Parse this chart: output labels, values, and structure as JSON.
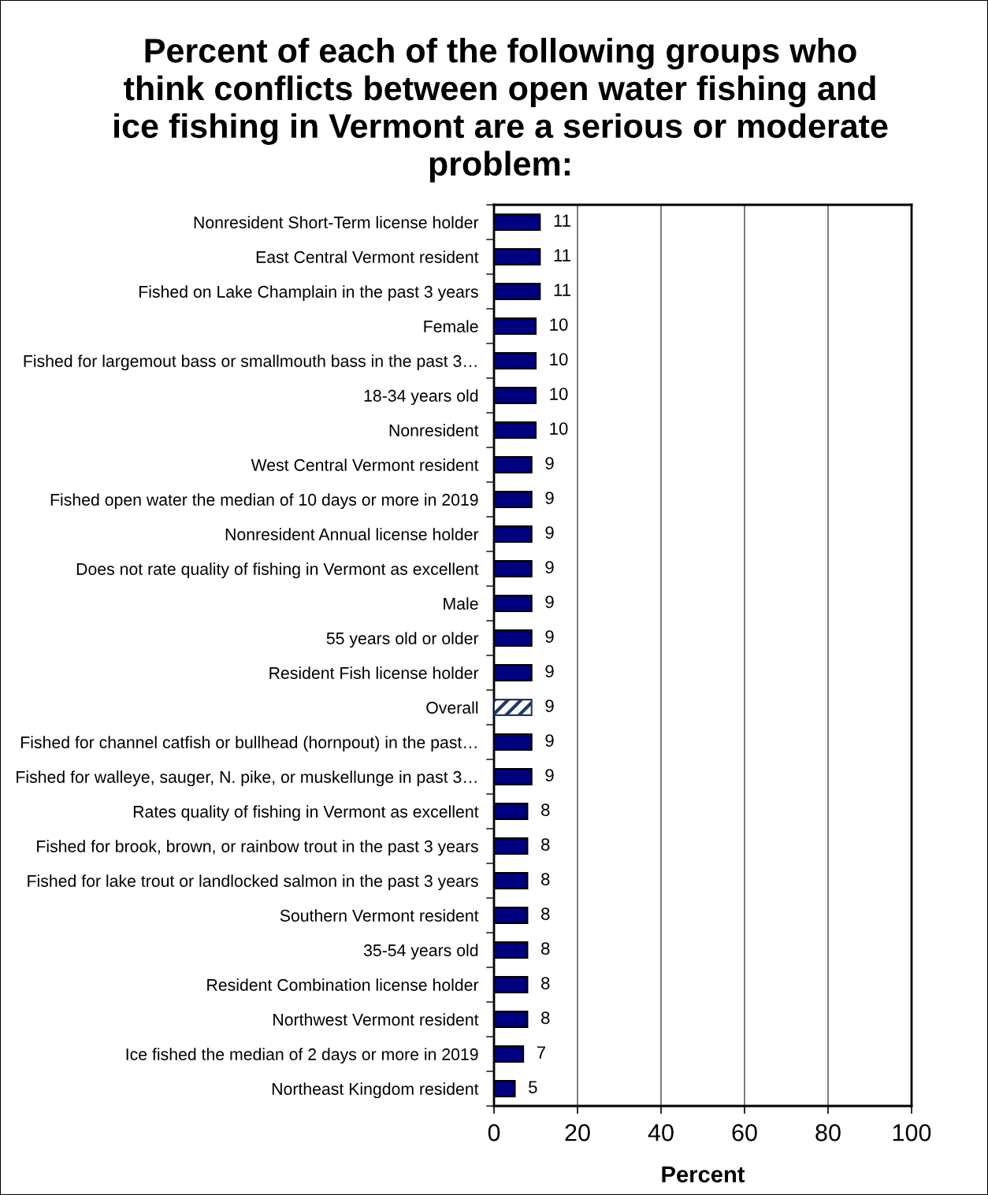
{
  "chart_data": {
    "type": "bar",
    "orientation": "horizontal",
    "title": "Percent of each of the following groups who think conflicts between open water fishing and ice fishing in Vermont are a serious or moderate problem:",
    "xlabel": "Percent",
    "categories": [
      "Nonresident Short-Term license holder",
      "East Central Vermont resident",
      "Fished on Lake Champlain in the past 3 years",
      "Female",
      "Fished for largemout bass or smallmouth bass in the past 3…",
      "18-34 years old",
      "Nonresident",
      "West Central Vermont resident",
      "Fished open water the median of 10 days or more in 2019",
      "Nonresident Annual license holder",
      "Does not rate quality of fishing in Vermont as excellent",
      "Male",
      "55 years old or older",
      "Resident Fish license holder",
      "Overall",
      "Fished for channel catfish or bullhead (hornpout) in the past…",
      "Fished for walleye, sauger, N. pike, or muskellunge in past 3…",
      "Rates quality of fishing in Vermont as excellent",
      "Fished for brook, brown, or rainbow trout in the past 3 years",
      "Fished for lake trout or landlocked salmon in the past 3 years",
      "Southern Vermont resident",
      "35-54 years old",
      "Resident Combination license holder",
      "Northwest Vermont resident",
      "Ice fished the median of 2 days or more in 2019",
      "Northeast Kingdom resident"
    ],
    "values": [
      11,
      11,
      11,
      10,
      10,
      10,
      10,
      9,
      9,
      9,
      9,
      9,
      9,
      9,
      9,
      9,
      9,
      8,
      8,
      8,
      8,
      8,
      8,
      8,
      7,
      5
    ],
    "colors": [
      "#000080",
      "#000080",
      "#000080",
      "#000080",
      "#000080",
      "#000080",
      "#000080",
      "#000080",
      "#000080",
      "#000080",
      "#000080",
      "#000080",
      "#000080",
      "#000080",
      "#203864",
      "#000080",
      "#000080",
      "#000080",
      "#000080",
      "#000080",
      "#000080",
      "#000080",
      "#000080",
      "#000080",
      "#000080",
      "#000080"
    ],
    "xlim": [
      0,
      100
    ],
    "xticks": [
      0,
      20,
      40,
      60,
      80,
      100
    ],
    "grid": "x",
    "data_labels": true
  }
}
